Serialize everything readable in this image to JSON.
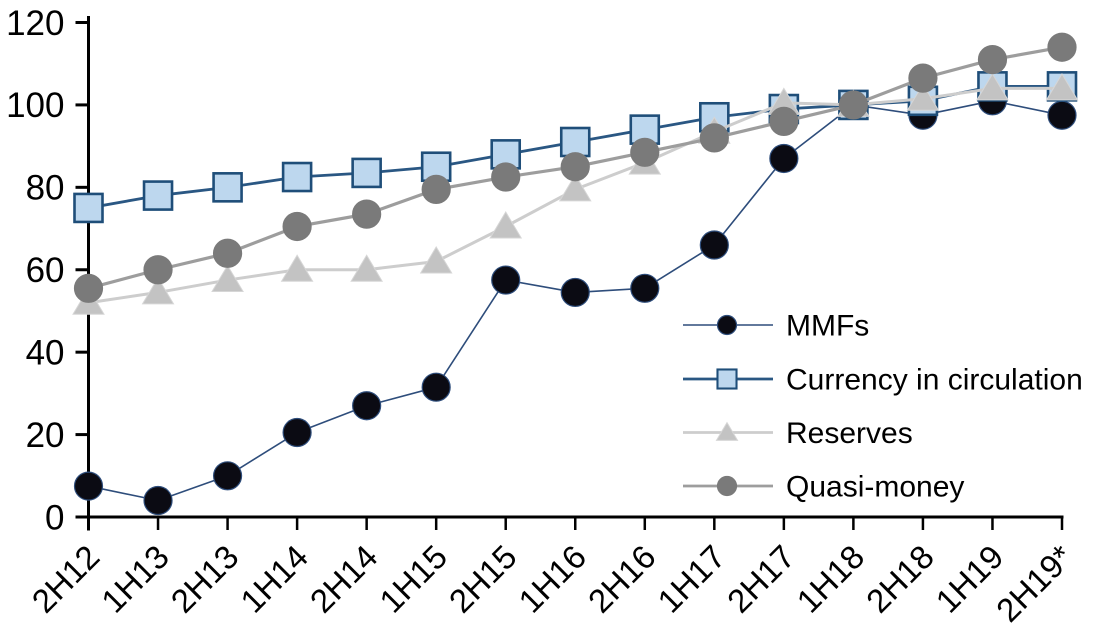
{
  "chart_data": {
    "type": "line",
    "title": "",
    "xlabel": "",
    "ylabel": "",
    "categories": [
      "2H12",
      "1H13",
      "2H13",
      "1H14",
      "2H14",
      "1H15",
      "2H15",
      "1H16",
      "2H16",
      "1H17",
      "2H17",
      "1H18",
      "2H18",
      "1H19",
      "2H19*"
    ],
    "series": [
      {
        "name": "MMFs",
        "marker": "circle",
        "marker_color": "#0b0b13",
        "marker_border": "#2e4d7b",
        "line_color": "#2e4d7b",
        "line_width": 1.6,
        "values": [
          7.5,
          4,
          10,
          20.5,
          27,
          31.5,
          57.5,
          54.5,
          55.5,
          66,
          87,
          100,
          97.5,
          101,
          97.5
        ]
      },
      {
        "name": "Currency in circulation",
        "marker": "square",
        "marker_color": "#bdd7ee",
        "marker_border": "#1f4e79",
        "line_color": "#2a5783",
        "line_width": 2.8,
        "values": [
          75,
          78,
          80,
          82.5,
          83.5,
          85,
          88,
          91,
          94,
          97,
          99,
          100,
          101,
          104.5,
          104.5
        ]
      },
      {
        "name": "Reserves",
        "marker": "triangle",
        "marker_color": "#c3c3c3",
        "marker_border": "#d6d6d6",
        "line_color": "#cdcdcd",
        "line_width": 3,
        "values": [
          52,
          54.5,
          57.5,
          60,
          60,
          62,
          70.5,
          79.5,
          86,
          93.5,
          100.5,
          100,
          101.5,
          104,
          104
        ]
      },
      {
        "name": "Quasi-money",
        "marker": "circle",
        "marker_color": "#7a7a7a",
        "marker_border": "#7a7a7a",
        "line_color": "#9d9d9d",
        "line_width": 3.2,
        "values": [
          55.5,
          60,
          64,
          70.5,
          73.5,
          79.5,
          82.5,
          85,
          88.5,
          92,
          96,
          100,
          106.5,
          111,
          114
        ]
      }
    ],
    "ylim": [
      0,
      120
    ],
    "y_ticks": [
      0,
      20,
      40,
      60,
      80,
      100,
      120
    ],
    "x_label_rotation": -45,
    "grid": false,
    "legend_position": "inside-right",
    "axis_color": "#000000",
    "text_color": "#000000",
    "background": "#ffffff"
  }
}
